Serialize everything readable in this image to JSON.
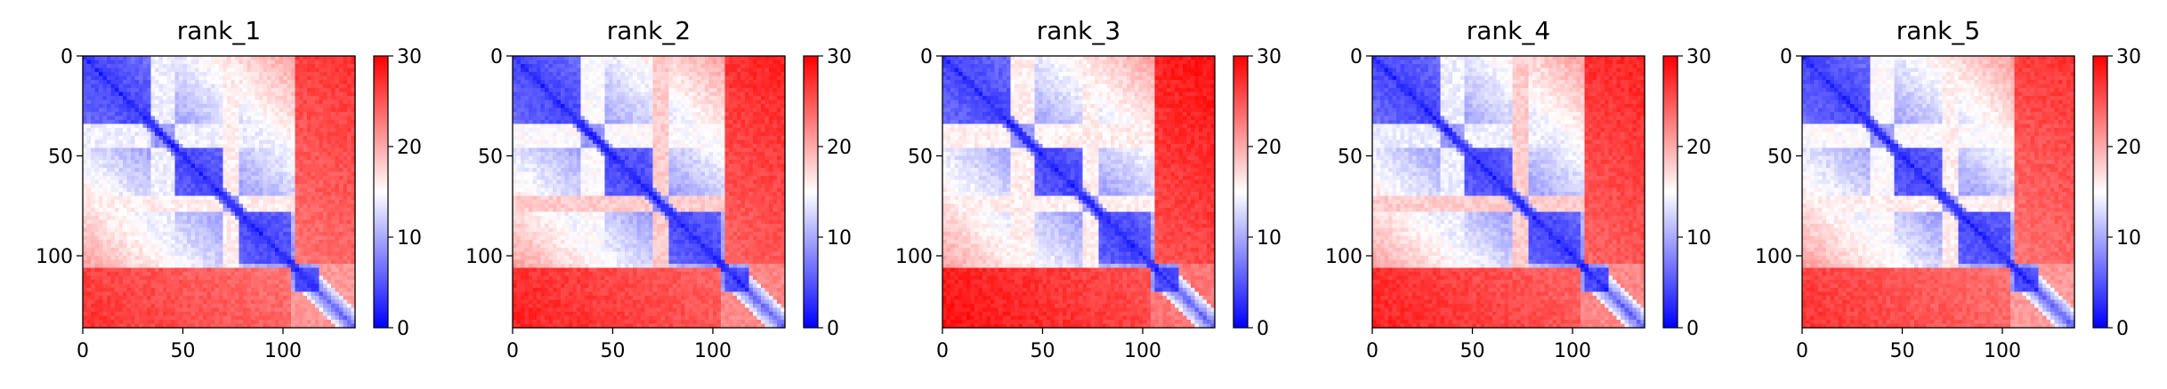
{
  "chart_data": [
    {
      "type": "heatmap",
      "title": "rank_1",
      "xlabel": "",
      "ylabel": "",
      "xlim": [
        0,
        136
      ],
      "ylim": [
        136,
        0
      ],
      "x_ticks": [
        0,
        50,
        100
      ],
      "y_ticks": [
        0,
        50,
        100
      ],
      "colorbar": {
        "min": 0,
        "max": 30,
        "ticks": [
          0,
          10,
          20,
          30
        ],
        "colormap": [
          "#0000ff",
          "#ffffff",
          "#ff0000"
        ]
      },
      "n": 136,
      "domains": [
        [
          0,
          33
        ],
        [
          46,
          70
        ],
        [
          78,
          104
        ],
        [
          106,
          136
        ]
      ],
      "far_value": 25,
      "near_value": 2
    },
    {
      "type": "heatmap",
      "title": "rank_2",
      "xlabel": "",
      "ylabel": "",
      "xlim": [
        0,
        136
      ],
      "ylim": [
        136,
        0
      ],
      "x_ticks": [
        0,
        50,
        100
      ],
      "y_ticks": [
        0,
        50,
        100
      ],
      "colorbar": {
        "min": 0,
        "max": 30,
        "ticks": [
          0,
          10,
          20,
          30
        ],
        "colormap": [
          "#0000ff",
          "#ffffff",
          "#ff0000"
        ]
      },
      "n": 136,
      "domains": [
        [
          0,
          33
        ],
        [
          46,
          70
        ],
        [
          78,
          104
        ],
        [
          106,
          136
        ]
      ],
      "far_value": 26,
      "near_value": 2
    },
    {
      "type": "heatmap",
      "title": "rank_3",
      "xlabel": "",
      "ylabel": "",
      "xlim": [
        0,
        136
      ],
      "ylim": [
        136,
        0
      ],
      "x_ticks": [
        0,
        50,
        100
      ],
      "y_ticks": [
        0,
        50,
        100
      ],
      "colorbar": {
        "min": 0,
        "max": 30,
        "ticks": [
          0,
          10,
          20,
          30
        ],
        "colormap": [
          "#0000ff",
          "#ffffff",
          "#ff0000"
        ]
      },
      "n": 136,
      "domains": [
        [
          0,
          33
        ],
        [
          46,
          70
        ],
        [
          78,
          104
        ],
        [
          106,
          136
        ]
      ],
      "far_value": 27,
      "near_value": 2
    },
    {
      "type": "heatmap",
      "title": "rank_4",
      "xlabel": "",
      "ylabel": "",
      "xlim": [
        0,
        136
      ],
      "ylim": [
        136,
        0
      ],
      "x_ticks": [
        0,
        50,
        100
      ],
      "y_ticks": [
        0,
        50,
        100
      ],
      "colorbar": {
        "min": 0,
        "max": 30,
        "ticks": [
          0,
          10,
          20,
          30
        ],
        "colormap": [
          "#0000ff",
          "#ffffff",
          "#ff0000"
        ]
      },
      "n": 136,
      "domains": [
        [
          0,
          33
        ],
        [
          46,
          70
        ],
        [
          78,
          104
        ],
        [
          106,
          136
        ]
      ],
      "far_value": 26,
      "near_value": 2
    },
    {
      "type": "heatmap",
      "title": "rank_5",
      "xlabel": "",
      "ylabel": "",
      "xlim": [
        0,
        136
      ],
      "ylim": [
        136,
        0
      ],
      "x_ticks": [
        0,
        50,
        100
      ],
      "y_ticks": [
        0,
        50,
        100
      ],
      "colorbar": {
        "min": 0,
        "max": 30,
        "ticks": [
          0,
          10,
          20,
          30
        ],
        "colormap": [
          "#0000ff",
          "#ffffff",
          "#ff0000"
        ]
      },
      "n": 136,
      "domains": [
        [
          0,
          33
        ],
        [
          46,
          70
        ],
        [
          78,
          104
        ],
        [
          106,
          136
        ]
      ],
      "far_value": 25,
      "near_value": 2
    }
  ]
}
